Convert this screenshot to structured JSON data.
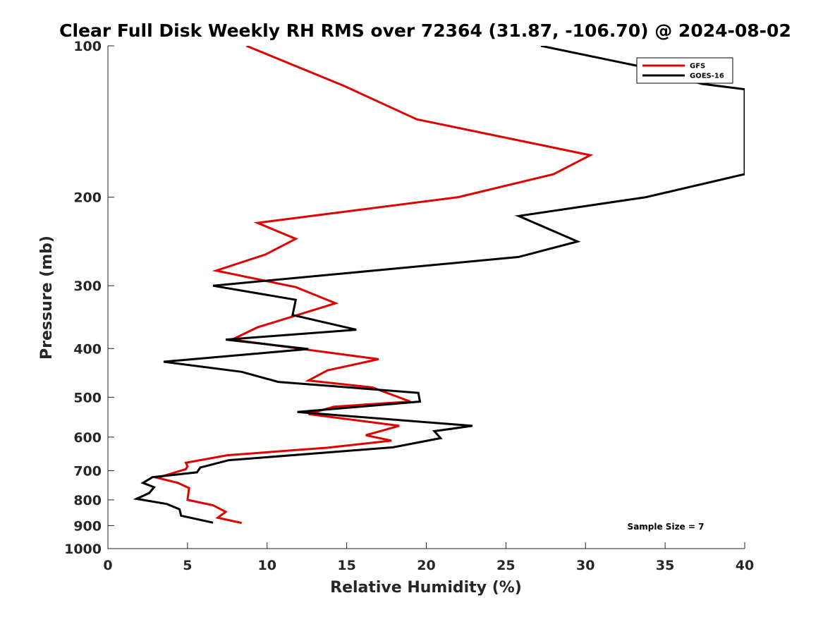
{
  "chart_data": {
    "type": "line",
    "title": "Clear Full Disk Weekly RH RMS over 72364 (31.87, -106.70) @ 2024-08-02",
    "xlabel": "Relative Humidity (%)",
    "ylabel": "Pressure (mb)",
    "xlim": [
      0,
      40
    ],
    "ylim": [
      100,
      1000
    ],
    "y_scale": "log",
    "y_reversed": true,
    "x_ticks": [
      0,
      5,
      10,
      15,
      20,
      25,
      30,
      35,
      40
    ],
    "y_ticks": [
      100,
      200,
      300,
      400,
      500,
      600,
      700,
      800,
      900,
      1000
    ],
    "grid": false,
    "legend_position": "top-right",
    "annotation": "Sample Size = 7",
    "series": [
      {
        "name": "GFS",
        "color": "#e00000",
        "points": [
          [
            8.7,
            100
          ],
          [
            14.8,
            120
          ],
          [
            19.4,
            140
          ],
          [
            30.3,
            165
          ],
          [
            28.0,
            180
          ],
          [
            22.0,
            200
          ],
          [
            9.4,
            225
          ],
          [
            11.8,
            242
          ],
          [
            9.9,
            260
          ],
          [
            6.8,
            280
          ],
          [
            11.8,
            302
          ],
          [
            14.3,
            325
          ],
          [
            9.4,
            363
          ],
          [
            7.8,
            384
          ],
          [
            12.0,
            400
          ],
          [
            17.0,
            420
          ],
          [
            13.8,
            442
          ],
          [
            12.6,
            463
          ],
          [
            16.6,
            478
          ],
          [
            19.0,
            510
          ],
          [
            14.2,
            522
          ],
          [
            12.6,
            540
          ],
          [
            18.3,
            570
          ],
          [
            16.2,
            595
          ],
          [
            17.8,
            610
          ],
          [
            13.8,
            630
          ],
          [
            7.5,
            652
          ],
          [
            4.9,
            675
          ],
          [
            5.0,
            686
          ],
          [
            4.9,
            695
          ],
          [
            3.1,
            723
          ],
          [
            4.4,
            740
          ],
          [
            5.1,
            758
          ],
          [
            5.0,
            800
          ],
          [
            6.6,
            820
          ],
          [
            7.4,
            845
          ],
          [
            6.9,
            868
          ],
          [
            8.4,
            889
          ]
        ]
      },
      {
        "name": "GOES-16",
        "color": "#000000",
        "points": [
          [
            27.2,
            100
          ],
          [
            33.5,
            110
          ],
          [
            37.3,
            119
          ],
          [
            40.0,
            122
          ],
          [
            40.0,
            180
          ],
          [
            33.8,
            200
          ],
          [
            25.8,
            218
          ],
          [
            29.5,
            245
          ],
          [
            25.8,
            263
          ],
          [
            6.6,
            300
          ],
          [
            11.8,
            320
          ],
          [
            11.6,
            343
          ],
          [
            15.6,
            367
          ],
          [
            7.4,
            384
          ],
          [
            12.6,
            401
          ],
          [
            3.5,
            425
          ],
          [
            8.4,
            445
          ],
          [
            10.7,
            466
          ],
          [
            19.5,
            490
          ],
          [
            19.6,
            510
          ],
          [
            11.9,
            535
          ],
          [
            22.9,
            570
          ],
          [
            20.5,
            584
          ],
          [
            20.9,
            603
          ],
          [
            17.9,
            629
          ],
          [
            7.6,
            667
          ],
          [
            5.8,
            690
          ],
          [
            5.6,
            705
          ],
          [
            2.8,
            721
          ],
          [
            2.2,
            740
          ],
          [
            2.9,
            755
          ],
          [
            2.6,
            775
          ],
          [
            1.8,
            796
          ],
          [
            3.7,
            815
          ],
          [
            4.5,
            835
          ],
          [
            4.6,
            860
          ],
          [
            6.6,
            888
          ]
        ]
      }
    ]
  }
}
